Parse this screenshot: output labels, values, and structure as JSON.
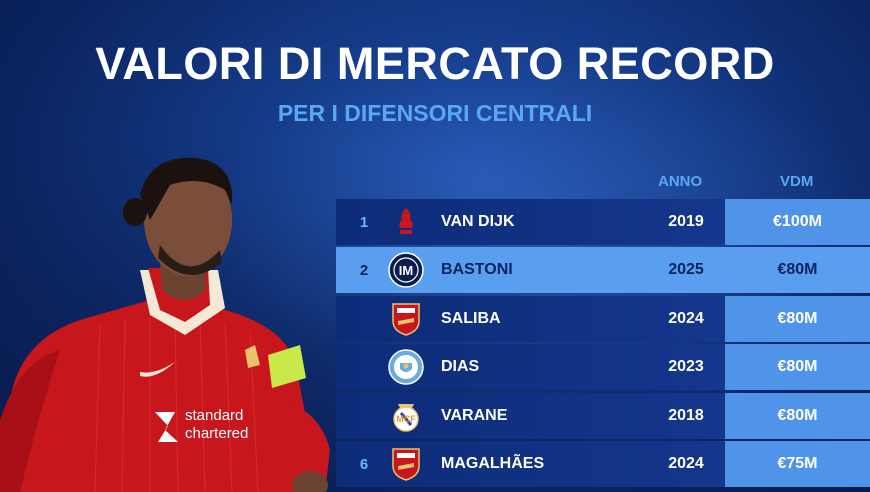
{
  "header": {
    "title": "VALORI DI MERCATO RECORD",
    "subtitle": "PER I DIFENSORI CENTRALI"
  },
  "table": {
    "columns": {
      "year": "ANNO",
      "value": "VDM"
    },
    "rows": [
      {
        "rank": "1",
        "club_icon": "liverpool-crest-icon",
        "name": "VAN DIJK",
        "year": "2019",
        "vdm": "€100M",
        "highlight": false
      },
      {
        "rank": "2",
        "club_icon": "inter-crest-icon",
        "name": "BASTONI",
        "year": "2025",
        "vdm": "€80M",
        "highlight": true
      },
      {
        "rank": "",
        "club_icon": "arsenal-crest-icon",
        "name": "SALIBA",
        "year": "2024",
        "vdm": "€80M",
        "highlight": false
      },
      {
        "rank": "",
        "club_icon": "manchester-city-crest-icon",
        "name": "DIAS",
        "year": "2023",
        "vdm": "€80M",
        "highlight": false
      },
      {
        "rank": "",
        "club_icon": "real-madrid-crest-icon",
        "name": "VARANE",
        "year": "2018",
        "vdm": "€80M",
        "highlight": false
      },
      {
        "rank": "6",
        "club_icon": "arsenal-crest-icon",
        "name": "MAGALHÃES",
        "year": "2024",
        "vdm": "€75M",
        "highlight": false
      }
    ]
  },
  "player": {
    "sponsor": "standard chartered"
  },
  "colors": {
    "background": "#0b2460",
    "accent_blue": "#5aa8f5",
    "highlight_row": "#5a9ef0",
    "kit_red": "#c8161d"
  }
}
